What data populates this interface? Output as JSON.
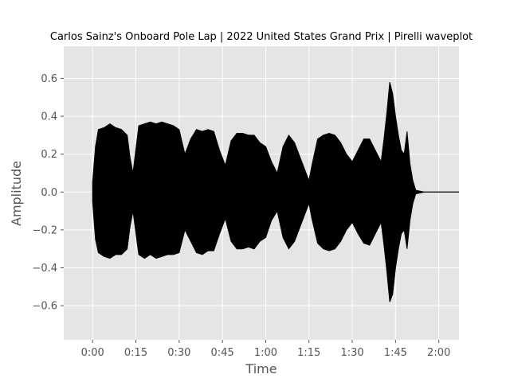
{
  "chart_data": {
    "type": "area",
    "title": "Carlos Sainz's Onboard Pole Lap | 2022 United States Grand Prix | Pirelli waveplot",
    "xlabel": "Time",
    "ylabel": "Amplitude",
    "xlim": [
      -10,
      127
    ],
    "ylim": [
      -0.78,
      0.77
    ],
    "x_ticks": [
      0,
      15,
      30,
      45,
      60,
      75,
      90,
      105,
      120
    ],
    "x_tick_labels": [
      "0:00",
      "0:15",
      "0:30",
      "0:45",
      "1:00",
      "1:15",
      "1:30",
      "1:45",
      "2:00"
    ],
    "y_ticks": [
      -0.6,
      -0.4,
      -0.2,
      0.0,
      0.2,
      0.4,
      0.6
    ],
    "y_tick_labels": [
      "−0.6",
      "−0.4",
      "−0.2",
      "0.0",
      "0.2",
      "0.4",
      "0.6"
    ],
    "grid": true,
    "colors": {
      "plot_background": "#e5e5e5",
      "grid": "#ffffff",
      "wave": "#000000"
    },
    "series": [
      {
        "x": [
          0,
          1,
          2,
          4,
          6,
          8,
          10,
          12,
          13,
          14,
          16,
          18,
          20,
          22,
          24,
          26,
          28,
          30,
          32,
          34,
          36,
          38,
          40,
          42,
          44,
          46,
          48,
          50,
          52,
          54,
          56,
          58,
          60,
          62,
          64,
          66,
          68,
          70,
          72,
          74,
          75,
          76,
          78,
          80,
          82,
          84,
          86,
          88,
          90,
          92,
          94,
          96,
          98,
          100,
          101,
          102,
          103,
          104,
          105,
          106,
          107,
          108,
          109,
          110,
          111,
          112,
          115,
          118,
          122,
          127
        ],
        "upper": [
          0.05,
          0.24,
          0.33,
          0.34,
          0.36,
          0.34,
          0.33,
          0.3,
          0.18,
          0.1,
          0.35,
          0.36,
          0.37,
          0.36,
          0.37,
          0.36,
          0.35,
          0.33,
          0.2,
          0.28,
          0.33,
          0.32,
          0.33,
          0.32,
          0.22,
          0.14,
          0.27,
          0.31,
          0.31,
          0.3,
          0.3,
          0.26,
          0.24,
          0.16,
          0.1,
          0.24,
          0.3,
          0.26,
          0.18,
          0.1,
          0.06,
          0.14,
          0.28,
          0.3,
          0.31,
          0.3,
          0.26,
          0.2,
          0.16,
          0.22,
          0.28,
          0.28,
          0.22,
          0.16,
          0.28,
          0.42,
          0.58,
          0.52,
          0.4,
          0.3,
          0.22,
          0.2,
          0.32,
          0.15,
          0.06,
          0.01,
          0.0,
          0.0,
          0.0,
          0.0
        ],
        "lower": [
          -0.05,
          -0.25,
          -0.32,
          -0.34,
          -0.35,
          -0.33,
          -0.33,
          -0.3,
          -0.18,
          -0.1,
          -0.33,
          -0.35,
          -0.33,
          -0.35,
          -0.34,
          -0.33,
          -0.33,
          -0.32,
          -0.2,
          -0.26,
          -0.32,
          -0.33,
          -0.31,
          -0.31,
          -0.22,
          -0.14,
          -0.26,
          -0.3,
          -0.3,
          -0.29,
          -0.3,
          -0.26,
          -0.24,
          -0.15,
          -0.1,
          -0.24,
          -0.3,
          -0.26,
          -0.18,
          -0.1,
          -0.06,
          -0.14,
          -0.27,
          -0.3,
          -0.31,
          -0.3,
          -0.26,
          -0.2,
          -0.16,
          -0.22,
          -0.27,
          -0.28,
          -0.22,
          -0.16,
          -0.28,
          -0.42,
          -0.58,
          -0.54,
          -0.4,
          -0.3,
          -0.22,
          -0.2,
          -0.3,
          -0.15,
          -0.06,
          -0.01,
          0.0,
          0.0,
          0.0,
          0.0
        ]
      }
    ]
  }
}
